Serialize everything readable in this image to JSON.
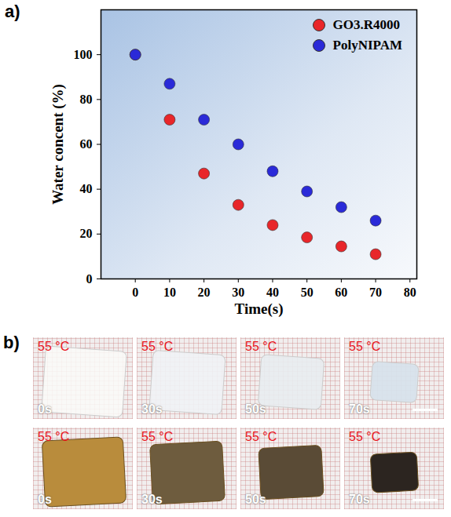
{
  "chart_data": {
    "type": "scatter",
    "x_label": "Time(s)",
    "y_label": "Water concent (%)",
    "x": [
      0,
      10,
      20,
      30,
      40,
      50,
      60,
      70
    ],
    "series": [
      {
        "name": "GO3.R4000",
        "color": "#e8262a",
        "marker": "circle",
        "values": [
          100,
          71,
          47,
          33,
          24,
          18.5,
          14.5,
          11
        ]
      },
      {
        "name": "PolyNIPAM",
        "color": "#2a2ad8",
        "marker": "circle",
        "values": [
          100,
          87,
          71,
          60,
          48,
          39,
          32,
          26
        ]
      }
    ],
    "xlim": [
      -10,
      82
    ],
    "xticks": [
      0,
      10,
      20,
      30,
      40,
      50,
      60,
      70,
      80
    ],
    "ylim": [
      0,
      120
    ],
    "yticks": [
      0,
      20,
      40,
      60,
      80,
      100
    ],
    "grid": false,
    "legend": "top-right"
  },
  "panel_labels": [
    "a)",
    "b)"
  ],
  "photo_panel": {
    "rows": [
      [
        {
          "temp": "55 °C",
          "time": "0s"
        },
        {
          "temp": "55 °C",
          "time": "30s"
        },
        {
          "temp": "55 °C",
          "time": "50s"
        },
        {
          "temp": "55 °C",
          "time": "70s"
        }
      ],
      [
        {
          "temp": "55 °C",
          "time": "0s"
        },
        {
          "temp": "55 °C",
          "time": "30s"
        },
        {
          "temp": "55 °C",
          "time": "50s"
        },
        {
          "temp": "55 °C",
          "time": "70s"
        }
      ]
    ]
  }
}
